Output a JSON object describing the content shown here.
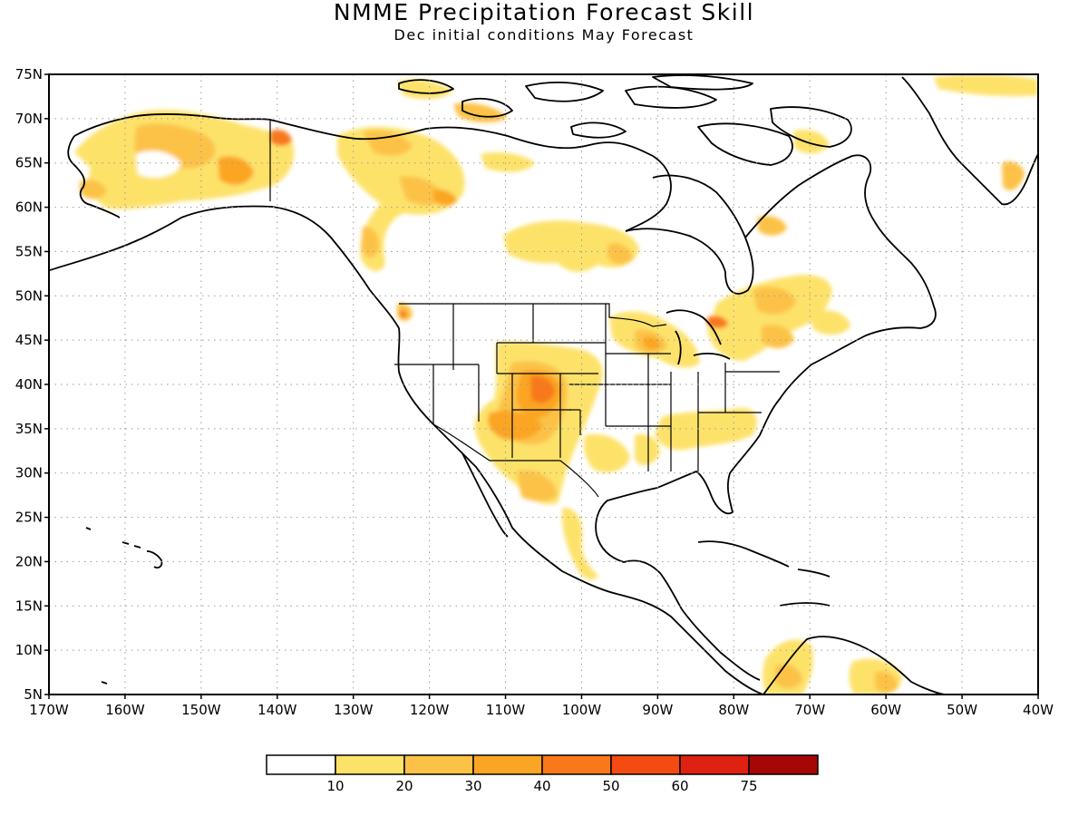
{
  "title": "NMME Precipitation Forecast Skill",
  "subtitle": "Dec initial conditions  May Forecast",
  "map": {
    "lon_range": [
      -170,
      -40
    ],
    "lat_range": [
      5,
      75
    ],
    "lat_ticks": [
      {
        "value": 75,
        "label": "75N"
      },
      {
        "value": 70,
        "label": "70N"
      },
      {
        "value": 65,
        "label": "65N"
      },
      {
        "value": 60,
        "label": "60N"
      },
      {
        "value": 55,
        "label": "55N"
      },
      {
        "value": 50,
        "label": "50N"
      },
      {
        "value": 45,
        "label": "45N"
      },
      {
        "value": 40,
        "label": "40N"
      },
      {
        "value": 35,
        "label": "35N"
      },
      {
        "value": 30,
        "label": "30N"
      },
      {
        "value": 25,
        "label": "25N"
      },
      {
        "value": 20,
        "label": "20N"
      },
      {
        "value": 15,
        "label": "15N"
      },
      {
        "value": 10,
        "label": "10N"
      },
      {
        "value": 5,
        "label": "5N"
      }
    ],
    "lon_ticks": [
      {
        "value": -170,
        "label": "170W"
      },
      {
        "value": -160,
        "label": "160W"
      },
      {
        "value": -150,
        "label": "150W"
      },
      {
        "value": -140,
        "label": "140W"
      },
      {
        "value": -130,
        "label": "130W"
      },
      {
        "value": -120,
        "label": "120W"
      },
      {
        "value": -110,
        "label": "110W"
      },
      {
        "value": -100,
        "label": "100W"
      },
      {
        "value": -90,
        "label": "90W"
      },
      {
        "value": -80,
        "label": "80W"
      },
      {
        "value": -70,
        "label": "70W"
      },
      {
        "value": -60,
        "label": "60W"
      },
      {
        "value": -50,
        "label": "50W"
      },
      {
        "value": -40,
        "label": "40W"
      }
    ],
    "grid": "dotted"
  },
  "colorbar": {
    "colors": [
      "#ffffff",
      "#fde26a",
      "#fcc247",
      "#fba524",
      "#f8781a",
      "#f44b12",
      "#de2110",
      "#a50707"
    ],
    "labels": [
      "10",
      "20",
      "30",
      "40",
      "50",
      "60",
      "75"
    ]
  },
  "skill_areas": [
    {
      "name": "Alaska",
      "level": 2
    },
    {
      "name": "Western Canada",
      "level": 2
    },
    {
      "name": "Colorado / New Mexico",
      "level": 4
    },
    {
      "name": "Great Lakes",
      "level": 3
    },
    {
      "name": "Southeast Canada",
      "level": 2
    },
    {
      "name": "Northern Mexico",
      "level": 2
    },
    {
      "name": "Northern South America",
      "level": 2
    }
  ]
}
